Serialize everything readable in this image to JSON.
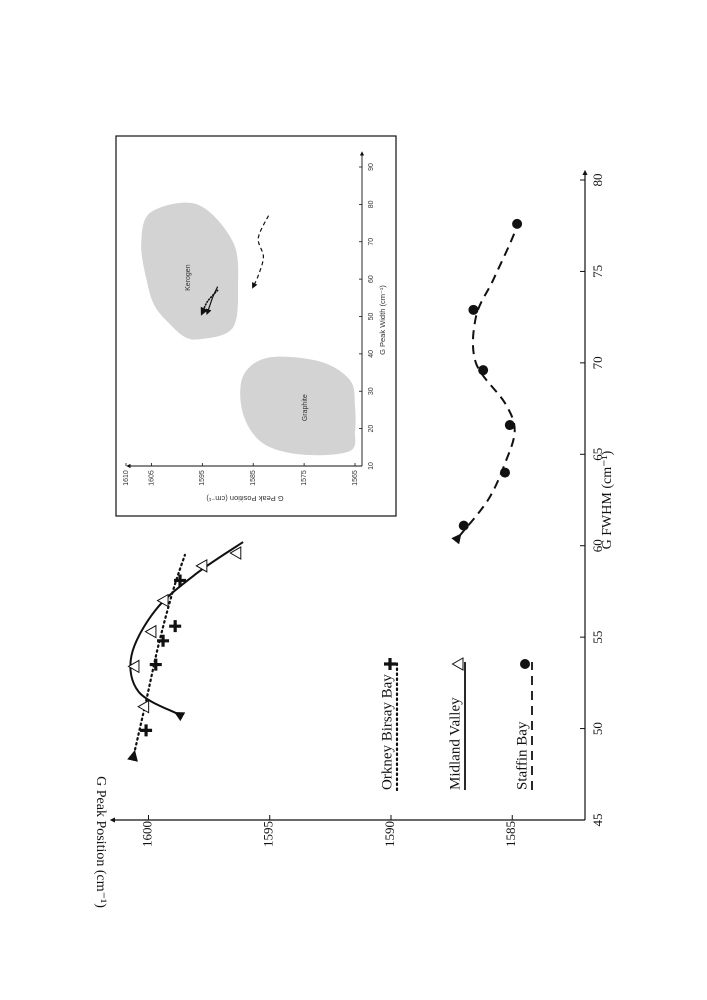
{
  "chart_data": [
    {
      "type": "line",
      "orientation": "rotated-90-clockwise",
      "xlabel": "G FWHM (cm⁻¹)",
      "ylabel": "G Peak Position (cm⁻¹)",
      "xlim": [
        45,
        80
      ],
      "ylim": [
        1582,
        1602
      ],
      "xticks": [
        "45",
        "50",
        "55",
        "60",
        "65",
        "70",
        "75",
        "80"
      ],
      "yticks": [
        "1585",
        "1590",
        "1595",
        "1600"
      ],
      "legend_placement": "lower-left",
      "series": [
        {
          "name": "Orkney Birsay Bay",
          "marker": "plus",
          "line": "dotted",
          "points": [
            [
              49.9,
              1600.1
            ],
            [
              53.5,
              1599.7
            ],
            [
              54.8,
              1599.4
            ],
            [
              55.6,
              1598.9
            ],
            [
              58.1,
              1598.7
            ]
          ],
          "trend": [
            [
              48.6,
              1600.6
            ],
            [
              51.5,
              1600.1
            ],
            [
              54.5,
              1599.6
            ],
            [
              57.5,
              1599.0
            ],
            [
              59.5,
              1598.5
            ]
          ]
        },
        {
          "name": "Midland Valley",
          "marker": "triangle-open",
          "line": "solid",
          "points": [
            [
              51.2,
              1600.2
            ],
            [
              53.4,
              1600.6
            ],
            [
              55.3,
              1599.9
            ],
            [
              57.0,
              1599.4
            ],
            [
              58.9,
              1597.8
            ],
            [
              59.6,
              1596.4
            ]
          ],
          "trend": [
            [
              50.8,
              1598.8
            ],
            [
              52.0,
              1600.4
            ],
            [
              54.0,
              1600.7
            ],
            [
              56.5,
              1599.7
            ],
            [
              58.5,
              1598.0
            ],
            [
              60.2,
              1596.1
            ]
          ]
        },
        {
          "name": "Staffin Bay",
          "marker": "circle-filled",
          "line": "dashed",
          "points": [
            [
              61.1,
              1587.0
            ],
            [
              64.0,
              1585.3
            ],
            [
              66.6,
              1585.1
            ],
            [
              69.6,
              1586.2
            ],
            [
              72.9,
              1586.6
            ],
            [
              77.6,
              1584.8
            ]
          ],
          "trend": [
            [
              60.5,
              1587.2
            ],
            [
              62.5,
              1586.0
            ],
            [
              64.5,
              1585.3
            ],
            [
              66.3,
              1584.9
            ],
            [
              67.8,
              1585.3
            ],
            [
              70.0,
              1586.5
            ],
            [
              72.5,
              1586.5
            ],
            [
              74.5,
              1585.8
            ],
            [
              76.5,
              1585.1
            ],
            [
              77.8,
              1584.7
            ]
          ]
        }
      ]
    },
    {
      "type": "area",
      "orientation": "rotated-90-clockwise",
      "xlabel": "G Peak Width (cm⁻¹)",
      "ylabel": "G Peak Position (cm⁻¹)",
      "xlim": [
        10,
        95
      ],
      "ylim": [
        1561,
        1612
      ],
      "xticks": [
        "10",
        "20",
        "30",
        "40",
        "50",
        "60",
        "70",
        "80",
        "90"
      ],
      "yticks": [
        "1565",
        "1575",
        "1585",
        "1595",
        "1605",
        "1610"
      ],
      "regions": [
        {
          "name": "Graphite",
          "outline": [
            [
              14,
              1566
            ],
            [
              19,
              1565
            ],
            [
              26,
              1565
            ],
            [
              33,
              1566
            ],
            [
              38,
              1572
            ],
            [
              39,
              1582
            ],
            [
              34,
              1587
            ],
            [
              24,
              1587
            ],
            [
              16,
              1583
            ],
            [
              13,
              1575
            ]
          ]
        },
        {
          "name": "Kerogen",
          "outline": [
            [
              45,
              1599
            ],
            [
              52,
              1604
            ],
            [
              60,
              1606
            ],
            [
              70,
              1607
            ],
            [
              78,
              1605
            ],
            [
              80,
              1596
            ],
            [
              70,
              1589
            ],
            [
              58,
              1588
            ],
            [
              47,
              1589
            ],
            [
              44,
              1595
            ]
          ]
        }
      ],
      "arrows": [
        {
          "style": "solid",
          "points": [
            [
              58,
              1592
            ],
            [
              55,
              1593
            ],
            [
              51,
              1594
            ]
          ]
        },
        {
          "style": "dotted",
          "points": [
            [
              57,
              1592
            ],
            [
              54,
              1594
            ],
            [
              51,
              1595
            ]
          ]
        },
        {
          "style": "dashed",
          "points": [
            [
              77,
              1582
            ],
            [
              71,
              1584
            ],
            [
              66,
              1583
            ],
            [
              61,
              1584
            ],
            [
              58,
              1585
            ]
          ]
        }
      ]
    }
  ]
}
